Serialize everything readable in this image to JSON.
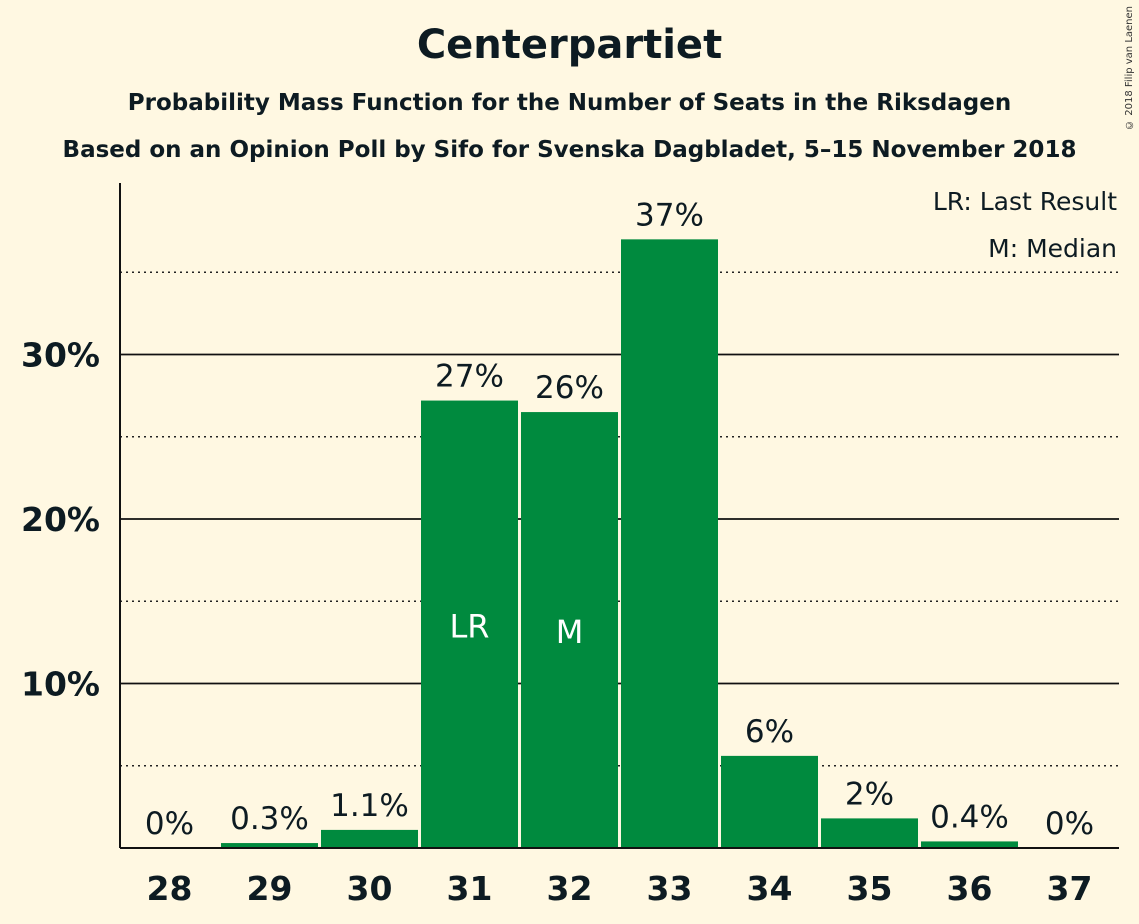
{
  "title": "Centerpartiet",
  "subtitle": "Probability Mass Function for the Number of Seats in the Riksdagen",
  "subtitle2": "Based on an Opinion Poll by Sifo for Svenska Dagbladet, 5–15 November 2018",
  "copyright": "© 2018 Filip van Laenen",
  "legend": {
    "lr": "LR: Last Result",
    "m": "M: Median"
  },
  "colors": {
    "bar": "#008a3e",
    "background": "#fff8e2",
    "text": "#0d1b22"
  },
  "chart_data": {
    "type": "bar",
    "categories": [
      "28",
      "29",
      "30",
      "31",
      "32",
      "33",
      "34",
      "35",
      "36",
      "37"
    ],
    "values": [
      0,
      0.3,
      1.1,
      27.2,
      26.5,
      37.0,
      5.6,
      1.8,
      0.4,
      0
    ],
    "data_labels": [
      "0%",
      "0.3%",
      "1.1%",
      "27%",
      "26%",
      "37%",
      "6%",
      "2%",
      "0.4%",
      "0%"
    ],
    "bar_markers": {
      "31": "LR",
      "32": "M"
    },
    "yticks": [
      10,
      20,
      30
    ],
    "ytick_labels": [
      "10%",
      "20%",
      "30%"
    ],
    "minor_gridlines": [
      5,
      15,
      25,
      35
    ],
    "ylim": [
      0,
      40
    ],
    "grid": true
  }
}
